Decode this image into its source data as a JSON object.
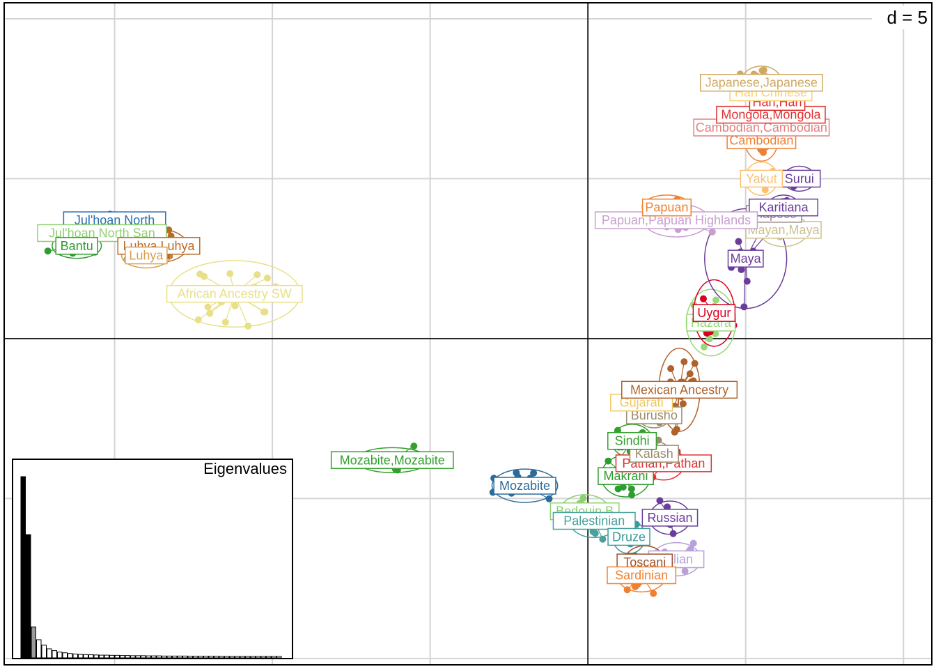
{
  "chart_data": {
    "type": "scatter",
    "scale_label": "d = 5",
    "grid": true,
    "center": [
      0,
      0
    ],
    "xlim": [
      -18.5,
      10.9
    ],
    "ylim": [
      -10.2,
      10.5
    ],
    "populations": [
      {
        "name": "Jul'hoan North",
        "color": "#2b6fb0",
        "label": [
          -15.0,
          3.7
        ],
        "spread": [
          0.8,
          0.2
        ],
        "n": 10
      },
      {
        "name": "Jul'hoan North San",
        "color": "#90d070",
        "label": [
          -15.4,
          3.3
        ],
        "spread": [
          0.9,
          0.2
        ],
        "n": 10
      },
      {
        "name": "Bantu",
        "color": "#2e9c2e",
        "label": [
          -16.2,
          2.9
        ],
        "spread": [
          0.6,
          0.3
        ],
        "n": 10
      },
      {
        "name": "Luhya,Luhya",
        "color": "#b86a28",
        "label": [
          -13.6,
          2.9
        ],
        "spread": [
          0.7,
          0.4
        ],
        "n": 12
      },
      {
        "name": "Luhya",
        "color": "#d8a050",
        "label": [
          -14.0,
          2.6
        ],
        "spread": [
          0.6,
          0.3
        ],
        "n": 8
      },
      {
        "name": "African Ancestry SW",
        "color": "#e8e088",
        "label": [
          -11.2,
          1.4
        ],
        "spread": [
          1.6,
          0.8
        ],
        "n": 22
      },
      {
        "name": "Mozabite,Mozabite",
        "color": "#33a02c",
        "label": [
          -6.2,
          -3.8
        ],
        "spread": [
          0.9,
          0.3
        ],
        "n": 12
      },
      {
        "name": "Mozabite",
        "color": "#2b6b9c",
        "label": [
          -2.0,
          -4.6
        ],
        "spread": [
          0.8,
          0.4
        ],
        "n": 15
      },
      {
        "name": "Bedouin B",
        "color": "#8cd070",
        "label": [
          -0.1,
          -5.4
        ],
        "spread": [
          0.6,
          0.4
        ],
        "n": 10
      },
      {
        "name": "Palestinian",
        "color": "#49a09c",
        "label": [
          0.2,
          -5.7
        ],
        "spread": [
          0.6,
          0.4
        ],
        "n": 10
      },
      {
        "name": "Druze",
        "color": "#3d9999",
        "label": [
          1.3,
          -6.2
        ],
        "spread": [
          0.4,
          0.4
        ],
        "n": 8
      },
      {
        "name": "Russian",
        "color": "#6a3d9a",
        "label": [
          2.6,
          -5.6
        ],
        "spread": [
          0.5,
          0.4
        ],
        "n": 10
      },
      {
        "name": "Italian",
        "color": "#b8a0d8",
        "label": [
          2.8,
          -6.9
        ],
        "spread": [
          0.6,
          0.4
        ],
        "n": 10
      },
      {
        "name": "Toscani",
        "color": "#a0522d",
        "label": [
          1.8,
          -7.0
        ],
        "spread": [
          0.5,
          0.4
        ],
        "n": 10
      },
      {
        "name": "Sardinian",
        "color": "#f08030",
        "label": [
          1.7,
          -7.4
        ],
        "spread": [
          0.6,
          0.4
        ],
        "n": 14
      },
      {
        "name": "Makrani",
        "color": "#2e9c2e",
        "label": [
          1.2,
          -4.3
        ],
        "spread": [
          0.6,
          0.5
        ],
        "n": 10
      },
      {
        "name": "Pathan,Pathan",
        "color": "#e03030",
        "label": [
          2.4,
          -3.9
        ],
        "spread": [
          0.5,
          0.4
        ],
        "n": 10
      },
      {
        "name": "Kalash",
        "color": "#9a8c6a",
        "label": [
          2.1,
          -3.6
        ],
        "spread": [
          0.4,
          0.3
        ],
        "n": 8
      },
      {
        "name": "Sindhi",
        "color": "#33a02c",
        "label": [
          1.4,
          -3.2
        ],
        "spread": [
          0.5,
          0.4
        ],
        "n": 10
      },
      {
        "name": "Burusho",
        "color": "#9a8c6a",
        "label": [
          2.1,
          -2.4
        ],
        "spread": [
          0.4,
          0.3
        ],
        "n": 8
      },
      {
        "name": "Gujarati",
        "color": "#f0c860",
        "label": [
          1.7,
          -2.0
        ],
        "spread": [
          0.4,
          0.3
        ],
        "n": 8
      },
      {
        "name": "Mexican Ancestry",
        "color": "#b0622d",
        "label": [
          2.9,
          -1.6
        ],
        "spread": [
          0.5,
          1.0
        ],
        "n": 20
      },
      {
        "name": "Hazara",
        "color": "#98d878",
        "label": [
          3.9,
          0.5
        ],
        "spread": [
          0.6,
          0.8
        ],
        "n": 10
      },
      {
        "name": "Uygur",
        "color": "#d7001f",
        "label": [
          4.0,
          0.8
        ],
        "spread": [
          0.5,
          0.8
        ],
        "n": 10
      },
      {
        "name": "Maya",
        "color": "#6a3d9a",
        "label": [
          5.0,
          2.5
        ],
        "spread": [
          1.0,
          1.2
        ],
        "n": 10
      },
      {
        "name": "Mayan,Maya",
        "color": "#ccc090",
        "label": [
          6.2,
          3.4
        ],
        "spread": [
          0.6,
          0.4
        ],
        "n": 8
      },
      {
        "name": "Piapoco",
        "color": "#9a8c8a",
        "label": [
          5.9,
          3.9
        ],
        "spread": [
          0.4,
          0.3
        ],
        "n": 7
      },
      {
        "name": "Karitiana",
        "color": "#6a3d9a",
        "label": [
          6.2,
          4.1
        ],
        "spread": [
          0.4,
          0.3
        ],
        "n": 7
      },
      {
        "name": "Surui",
        "color": "#6a3d9a",
        "label": [
          6.7,
          5.0
        ],
        "spread": [
          0.4,
          0.3
        ],
        "n": 7
      },
      {
        "name": "Papuan,Papuan Highlands",
        "color": "#c8a0d0",
        "label": [
          2.8,
          3.7
        ],
        "spread": [
          0.8,
          0.4
        ],
        "n": 10
      },
      {
        "name": "Papuan",
        "color": "#f08030",
        "label": [
          2.5,
          4.1
        ],
        "spread": [
          0.6,
          0.3
        ],
        "n": 8
      },
      {
        "name": "Yakut",
        "color": "#fdbf6f",
        "label": [
          5.5,
          5.0
        ],
        "spread": [
          0.4,
          0.4
        ],
        "n": 8
      },
      {
        "name": "Cambodian",
        "color": "#f08030",
        "label": [
          5.5,
          6.2
        ],
        "spread": [
          0.4,
          0.5
        ],
        "n": 10
      },
      {
        "name": "Cambodian,Cambodian",
        "color": "#e08080",
        "label": [
          5.5,
          6.6
        ],
        "spread": [
          0.5,
          0.5
        ],
        "n": 10
      },
      {
        "name": "Mongola,Mongola",
        "color": "#e03030",
        "label": [
          5.8,
          7.0
        ],
        "spread": [
          0.4,
          0.4
        ],
        "n": 10
      },
      {
        "name": "Han,Han",
        "color": "#e03030",
        "label": [
          6.0,
          7.4
        ],
        "spread": [
          0.4,
          0.4
        ],
        "n": 10
      },
      {
        "name": "Han Chinese",
        "color": "#fdd070",
        "label": [
          5.8,
          7.7
        ],
        "spread": [
          0.4,
          0.4
        ],
        "n": 10
      },
      {
        "name": "Japanese,Japanese",
        "color": "#d0a860",
        "label": [
          5.5,
          8.0
        ],
        "spread": [
          0.5,
          0.4
        ],
        "n": 10
      }
    ],
    "eigenvalues": {
      "title": "Eigenvalues",
      "values": [
        100,
        68,
        17,
        10,
        7,
        5,
        4,
        3.2,
        2.8,
        2.4,
        2.1,
        1.9,
        1.8,
        1.7,
        1.6,
        1.5,
        1.5,
        1.4,
        1.4,
        1.3,
        1.3,
        1.2,
        1.2,
        1.2,
        1.1,
        1.1,
        1.1,
        1.0,
        1.0,
        1.0,
        1.0,
        1.0,
        0.9,
        0.9,
        0.9,
        0.9,
        0.9,
        0.9,
        0.8,
        0.8,
        0.8,
        0.8,
        0.8,
        0.8,
        0.8,
        0.8,
        0.8,
        0.8,
        0.8,
        0.8
      ],
      "colors": {
        "selected": "#000000",
        "second": "#9a9a9a",
        "rest": "#ffffff"
      },
      "n_selected": 2
    }
  }
}
